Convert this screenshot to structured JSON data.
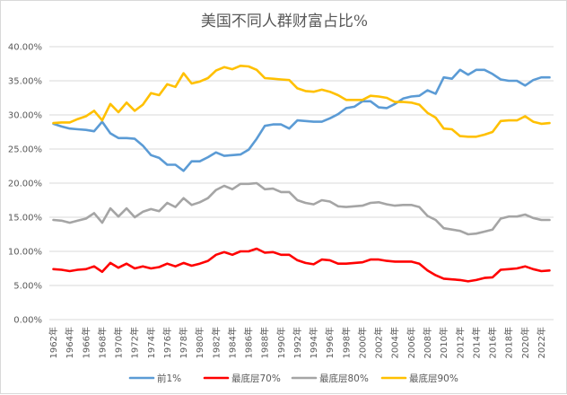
{
  "chart_data": {
    "type": "line",
    "title": "美国不同人群财富占比%",
    "xlabel": "",
    "ylabel": "",
    "ylim": [
      0,
      40
    ],
    "y_tick_labels": [
      "0.00%",
      "5.00%",
      "10.00%",
      "15.00%",
      "20.00%",
      "25.00%",
      "30.00%",
      "35.00%",
      "40.00%"
    ],
    "x": [
      1962,
      1963,
      1964,
      1965,
      1966,
      1967,
      1968,
      1969,
      1970,
      1971,
      1972,
      1973,
      1974,
      1975,
      1976,
      1977,
      1978,
      1979,
      1980,
      1981,
      1982,
      1983,
      1984,
      1985,
      1986,
      1987,
      1988,
      1989,
      1990,
      1991,
      1992,
      1993,
      1994,
      1995,
      1996,
      1997,
      1998,
      1999,
      2000,
      2001,
      2002,
      2003,
      2004,
      2005,
      2006,
      2007,
      2008,
      2009,
      2010,
      2011,
      2012,
      2013,
      2014,
      2015,
      2016,
      2017,
      2018,
      2019,
      2020,
      2021,
      2022,
      2023
    ],
    "x_tick_labels": [
      "1962年",
      "1964年",
      "1966年",
      "1968年",
      "1970年",
      "1972年",
      "1974年",
      "1976年",
      "1978年",
      "1980年",
      "1982年",
      "1984年",
      "1986年",
      "1988年",
      "1990年",
      "1992年",
      "1994年",
      "1996年",
      "1998年",
      "2000年",
      "2002年",
      "2004年",
      "2006年",
      "2008年",
      "2010年",
      "2012年",
      "2014年",
      "2016年",
      "2018年",
      "2020年",
      "2022年"
    ],
    "grid": true,
    "legend_position": "bottom",
    "series": [
      {
        "name": "前1%",
        "color": "#5b9bd5",
        "values": [
          28.7,
          28.3,
          28.0,
          27.9,
          27.8,
          27.6,
          29.0,
          27.3,
          26.6,
          26.6,
          26.5,
          25.5,
          24.1,
          23.7,
          22.7,
          22.7,
          21.8,
          23.2,
          23.2,
          23.8,
          24.5,
          24.0,
          24.1,
          24.2,
          24.9,
          26.5,
          28.4,
          28.6,
          28.6,
          28.0,
          29.2,
          29.1,
          29.0,
          29.0,
          29.5,
          30.1,
          31.0,
          31.2,
          32.0,
          32.0,
          31.1,
          31.0,
          31.6,
          32.4,
          32.7,
          32.8,
          33.6,
          33.1,
          35.5,
          35.3,
          36.6,
          35.9,
          36.6,
          36.6,
          36.0,
          35.2,
          35.0,
          35.0,
          34.3,
          35.1,
          35.5,
          35.5
        ]
      },
      {
        "name": "最底层70%",
        "color": "#ff0000",
        "values": [
          7.4,
          7.3,
          7.1,
          7.3,
          7.4,
          7.8,
          7.0,
          8.3,
          7.6,
          8.2,
          7.5,
          7.8,
          7.5,
          7.7,
          8.2,
          7.8,
          8.3,
          7.9,
          8.2,
          8.6,
          9.5,
          9.9,
          9.5,
          10.0,
          10.0,
          10.4,
          9.8,
          9.9,
          9.5,
          9.5,
          8.7,
          8.3,
          8.1,
          8.8,
          8.7,
          8.2,
          8.2,
          8.3,
          8.4,
          8.8,
          8.8,
          8.6,
          8.5,
          8.5,
          8.5,
          8.2,
          7.2,
          6.5,
          6.0,
          5.9,
          5.8,
          5.6,
          5.8,
          6.1,
          6.2,
          7.3,
          7.4,
          7.5,
          7.8,
          7.4,
          7.1,
          7.2
        ]
      },
      {
        "name": "最底层80%",
        "color": "#a5a5a5",
        "values": [
          14.6,
          14.5,
          14.2,
          14.5,
          14.8,
          15.6,
          14.2,
          16.3,
          15.1,
          16.3,
          15.0,
          15.8,
          16.2,
          15.9,
          17.1,
          16.5,
          17.8,
          16.8,
          17.2,
          17.8,
          19.0,
          19.6,
          19.1,
          19.9,
          19.9,
          20.0,
          19.1,
          19.2,
          18.7,
          18.7,
          17.5,
          17.1,
          16.9,
          17.5,
          17.3,
          16.6,
          16.5,
          16.6,
          16.7,
          17.1,
          17.2,
          16.9,
          16.7,
          16.8,
          16.8,
          16.5,
          15.2,
          14.6,
          13.4,
          13.2,
          13.0,
          12.5,
          12.6,
          12.9,
          13.2,
          14.8,
          15.1,
          15.1,
          15.4,
          14.9,
          14.6,
          14.6
        ]
      },
      {
        "name": "最底层90%",
        "color": "#ffc000",
        "values": [
          28.8,
          28.9,
          28.9,
          29.4,
          29.8,
          30.6,
          29.2,
          31.6,
          30.4,
          31.8,
          30.6,
          31.5,
          33.2,
          32.9,
          34.5,
          34.1,
          36.1,
          34.6,
          34.9,
          35.4,
          36.5,
          37.0,
          36.7,
          37.2,
          37.1,
          36.6,
          35.4,
          35.3,
          35.2,
          35.1,
          33.9,
          33.5,
          33.4,
          33.7,
          33.4,
          32.9,
          32.2,
          32.2,
          32.2,
          32.8,
          32.7,
          32.5,
          31.9,
          31.9,
          31.8,
          31.5,
          30.3,
          29.6,
          28.0,
          27.9,
          26.9,
          26.8,
          26.8,
          27.1,
          27.5,
          29.1,
          29.2,
          29.2,
          29.8,
          29.0,
          28.7,
          28.8
        ]
      }
    ]
  }
}
